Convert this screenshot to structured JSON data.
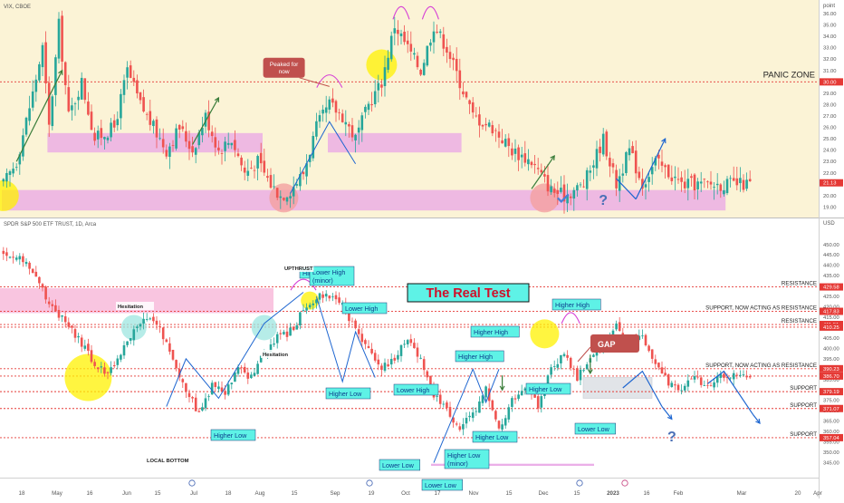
{
  "colors": {
    "up": "#26a69a",
    "down": "#ef5350",
    "vix_bg": "#fbf3d6",
    "zone": "#e9a6e6",
    "pink_zone": "#f7b6d8",
    "level_line": "#e53935",
    "callout_bg": "#5ef2e6",
    "callout_text": "#0b3c8c",
    "gap_box": "#c0504d",
    "circle_yellow": "#fff200",
    "circle_red": "#f4a0a0",
    "circle_teal": "#9ee6e0",
    "arrow_blue": "#1e66d0",
    "arrow_green": "#3a7d3a",
    "arc_magenta": "#d63fd6",
    "axis_text": "#555555"
  },
  "chart_data": [
    {
      "type": "candlestick",
      "title": "VIX, CBOE",
      "y_axis_unit": "point",
      "ylim": [
        18.4,
        36.4
      ],
      "y_ticks": [
        19,
        20,
        21,
        22,
        23,
        24,
        25,
        26,
        27,
        28,
        29,
        30,
        31,
        32,
        33,
        34,
        35,
        36
      ],
      "price_tags": [
        {
          "value": 30.0,
          "label": "30.00"
        },
        {
          "value": 21.13,
          "label": "21.13"
        }
      ],
      "levels": [
        {
          "value": 30.0,
          "label": "PANIC ZONE"
        }
      ],
      "zones": [
        {
          "from_bar": 14,
          "to_bar": 80,
          "low": 23.8,
          "high": 25.5
        },
        {
          "from_bar": 100,
          "to_bar": 141,
          "low": 23.8,
          "high": 25.5
        },
        {
          "from_bar": 0,
          "to_bar": 222,
          "low": 18.7,
          "high": 20.5
        }
      ],
      "annotations": [
        {
          "text": "Peaked for now",
          "bar": 78,
          "value": 31.0
        },
        {
          "text": "?",
          "bar": 184,
          "value": 19.2
        }
      ]
    },
    {
      "type": "candlestick",
      "title": "SPDR S&P 500 ETF TRUST, 1D, Arca",
      "y_axis_unit": "USD",
      "ylim": [
        340,
        456
      ],
      "y_ticks": [
        345,
        350,
        355,
        360,
        365,
        370,
        375,
        380,
        385,
        390,
        395,
        400,
        405,
        410,
        415,
        420,
        425,
        430,
        435,
        440,
        445,
        450
      ],
      "levels": [
        {
          "value": 429.58,
          "label": "RESISTANCE",
          "tag": "429.58"
        },
        {
          "value": 417.83,
          "label": "SUPPORT, NOW ACTING AS RESISTANCE",
          "tag": "417.83"
        },
        {
          "value": 411.51,
          "label": "RESISTANCE",
          "tag": "411.51"
        },
        {
          "value": 410.25,
          "label": "",
          "tag": "410.25"
        },
        {
          "value": 390.23,
          "label": "SUPPORT, NOW ACTING AS RESISTANCE",
          "tag": "390.23"
        },
        {
          "value": 386.7,
          "label": "",
          "tag": "386.70"
        },
        {
          "value": 379.19,
          "label": "SUPPORT",
          "tag": "379.19"
        },
        {
          "value": 371.07,
          "label": "SUPPORT",
          "tag": "371.07"
        },
        {
          "value": 357.04,
          "label": "SUPPORT",
          "tag": "357.04"
        }
      ],
      "labels": [
        {
          "text": "The Real Test",
          "style": "title-box"
        },
        {
          "text": "Higher High",
          "style": "callout"
        },
        {
          "text": "Lower High\n(minor)",
          "style": "callout"
        },
        {
          "text": "UPTHRUST",
          "style": "plain"
        },
        {
          "text": "Lower High",
          "style": "callout"
        },
        {
          "text": "Higher Low",
          "style": "callout"
        },
        {
          "text": "Higher Low",
          "style": "callout"
        },
        {
          "text": "Higher High",
          "style": "callout"
        },
        {
          "text": "Lower Low",
          "style": "callout"
        },
        {
          "text": "Higher Low\n(minor)",
          "style": "callout"
        },
        {
          "text": "Lower Low",
          "style": "callout"
        },
        {
          "text": "Lower High",
          "style": "callout"
        },
        {
          "text": "Higher High",
          "style": "callout"
        },
        {
          "text": "Higher Low",
          "style": "callout"
        },
        {
          "text": "Higher Low",
          "style": "callout"
        },
        {
          "text": "Higher High",
          "style": "callout"
        },
        {
          "text": "Lower Low",
          "style": "callout"
        },
        {
          "text": "Hesitation",
          "style": "plain"
        },
        {
          "text": "Hesitation",
          "style": "plain"
        },
        {
          "text": "LOCAL BOTTOM",
          "style": "plain"
        },
        {
          "text": "GAP",
          "style": "gap"
        },
        {
          "text": "?",
          "style": "question"
        }
      ]
    }
  ],
  "x_axis": {
    "labels": [
      "18",
      "May",
      "16",
      "Jun",
      "15",
      "Jul",
      "18",
      "Aug",
      "15",
      "Sep",
      "19",
      "Oct",
      "17",
      "Nov",
      "15",
      "Dec",
      "15",
      "2023",
      "16",
      "Feb",
      "Mar",
      "20",
      "Apr"
    ]
  },
  "page": {
    "vix_title": "VIX, CBOE",
    "spy_title": "SPDR S&P 500 ETF TRUST, 1D, Arca",
    "vix_unit": "point",
    "spy_unit": "USD"
  }
}
